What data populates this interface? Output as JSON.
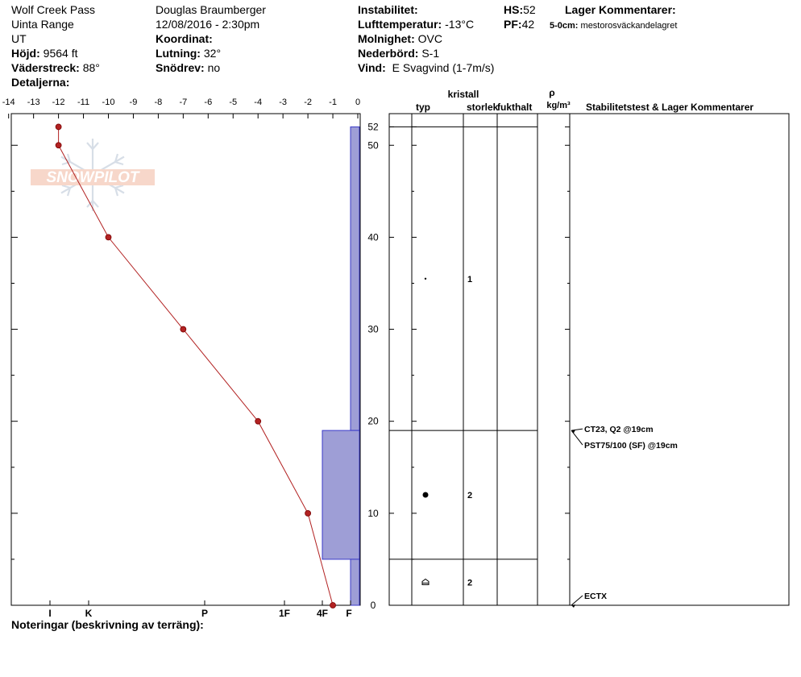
{
  "header": {
    "location": "Wolf Creek Pass",
    "range": "Uinta Range",
    "state": "UT",
    "elevation_label": "Höjd:",
    "elevation_value": "9564 ft",
    "aspect_label": "Väderstreck:",
    "aspect_value": "88°",
    "details_label": "Detaljerna:",
    "observer": "Douglas Braumberger",
    "datetime": "12/08/2016 - 2:30pm",
    "coord_label": "Koordinat:",
    "slope_label": "Lutning:",
    "slope_value": "32°",
    "drift_label": "Snödrev:",
    "drift_value": "no",
    "instability_label": "Instabilitet:",
    "airtemp_label": "Lufttemperatur:",
    "airtemp_value": "-13°C",
    "sky_label": "Molnighet:",
    "sky_value": "OVC",
    "precip_label": "Nederbörd:",
    "precip_value": "S-1",
    "wind_label": "Vind:",
    "wind_value": "E Svagvind (1-7m/s)",
    "hs_label": "HS:",
    "hs_value": "52",
    "pf_label": "PF:",
    "pf_value": "42",
    "layer_comments_label": "Lager Kommentarer:",
    "layer_comment_depth": "5-0cm:",
    "layer_comment_text": "mestorosväckandelagret"
  },
  "columns": {
    "crystal": "kristall",
    "type": "typ",
    "size": "storlek",
    "moisture": "fukthalt",
    "density_symbol": "ρ",
    "density_unit": "kg/m³",
    "stability": "Stabilitetstest & Lager Kommentarer"
  },
  "footer": {
    "notes_label": "Noteringar (beskrivning av terräng):"
  },
  "watermark": {
    "text": "SNOWPILOT"
  },
  "chart_data": {
    "type": "line",
    "temperature_axis": {
      "unit": "°C",
      "range": [
        -14,
        0
      ],
      "ticks": [
        -14,
        -13,
        -12,
        -11,
        -10,
        -9,
        -8,
        -7,
        -6,
        -5,
        -4,
        -3,
        -2,
        -1,
        0
      ]
    },
    "depth_axis": {
      "unit": "cm",
      "range": [
        0,
        53
      ],
      "ticks": [
        0,
        10,
        20,
        30,
        40,
        50,
        52
      ]
    },
    "hardness_axis": {
      "ticks": [
        "I",
        "K",
        "P",
        "1F",
        "4F",
        "F"
      ]
    },
    "temperature_profile": [
      {
        "depth": 52,
        "temp": -12
      },
      {
        "depth": 50,
        "temp": -12
      },
      {
        "depth": 40,
        "temp": -10
      },
      {
        "depth": 30,
        "temp": -7
      },
      {
        "depth": 20,
        "temp": -4
      },
      {
        "depth": 10,
        "temp": -2
      },
      {
        "depth": 0,
        "temp": -1
      }
    ],
    "layers": [
      {
        "top": 52,
        "bottom": 19,
        "hardness": "F",
        "crystal_type": "precipitation particles",
        "grain_size": "1"
      },
      {
        "top": 19,
        "bottom": 5,
        "hardness": "4F",
        "crystal_type": "rounded grains",
        "grain_size": "2"
      },
      {
        "top": 5,
        "bottom": 0,
        "hardness": "F",
        "crystal_type": "depth hoar",
        "grain_size": "2"
      }
    ],
    "stability_tests": [
      {
        "depth": 19,
        "label": "CT23, Q2 @19cm"
      },
      {
        "depth": 19,
        "label": "PST75/100 (SF) @19cm"
      },
      {
        "depth": 0,
        "label": "ECTX"
      }
    ],
    "colors": {
      "temperature_line": "#b22222",
      "hardness_fill": "#9e9ed6",
      "hardness_stroke": "#3a3ac8"
    }
  }
}
